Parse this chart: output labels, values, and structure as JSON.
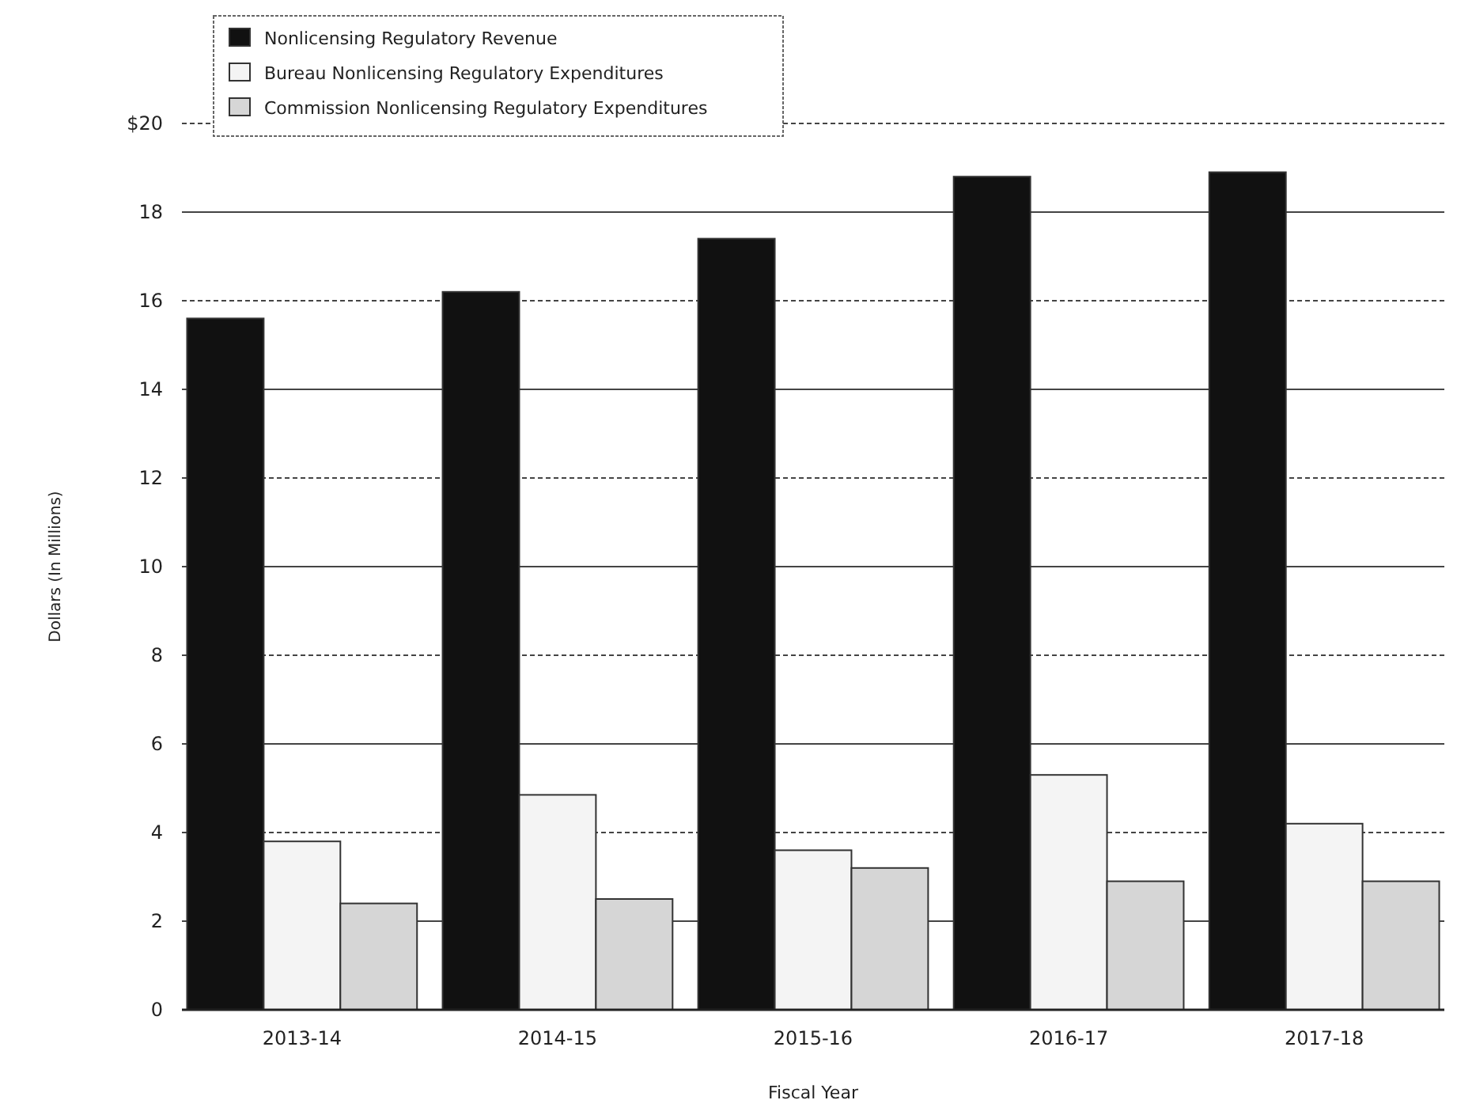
{
  "chart_data": {
    "type": "bar",
    "xlabel": "Fiscal Year",
    "ylabel": "Dollars (In Millions)",
    "categories": [
      "2013-14",
      "2014-15",
      "2015-16",
      "2016-17",
      "2017-18"
    ],
    "series": [
      {
        "name": "Nonlicensing Regulatory Revenue",
        "color": "#111111",
        "values": [
          15.6,
          16.2,
          17.4,
          18.8,
          18.9
        ]
      },
      {
        "name": "Bureau Nonlicensing Regulatory Expenditures",
        "color": "#f4f4f4",
        "values": [
          3.8,
          4.85,
          3.6,
          5.3,
          4.2
        ]
      },
      {
        "name": "Commission Nonlicensing Regulatory Expenditures",
        "color": "#d6d6d6",
        "values": [
          2.4,
          2.5,
          3.2,
          2.9,
          2.9
        ]
      }
    ],
    "ylim": [
      0,
      20
    ],
    "yticks": [
      0,
      2,
      4,
      6,
      8,
      10,
      12,
      14,
      16,
      18,
      {
        "value": 20,
        "label": "$20"
      }
    ],
    "grid": "y",
    "legend": "top left"
  }
}
